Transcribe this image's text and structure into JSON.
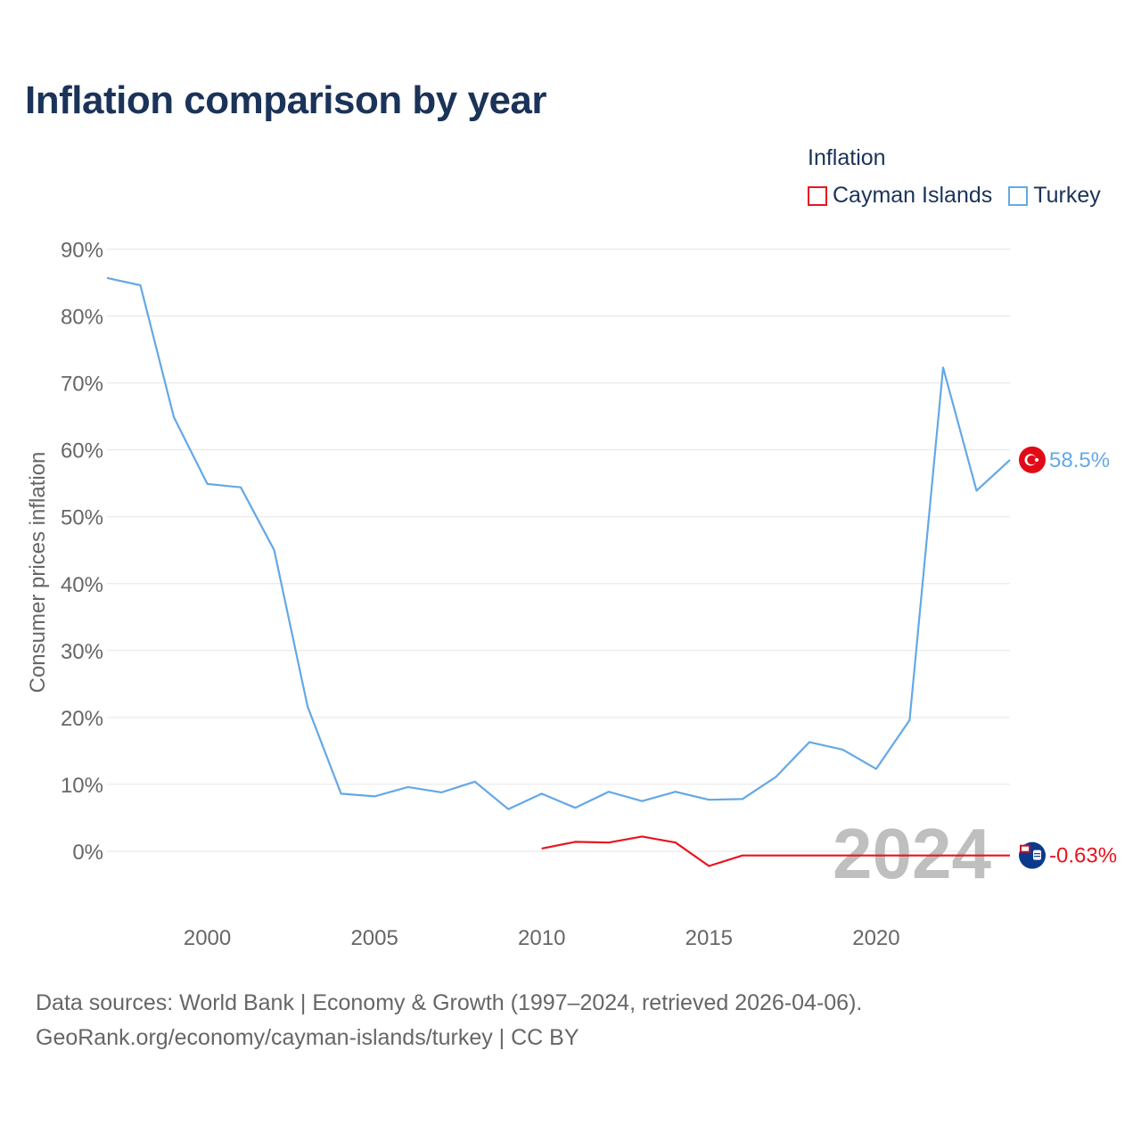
{
  "header": {
    "title": "Inflation comparison by year"
  },
  "legend": {
    "title": "Inflation",
    "items": [
      {
        "label": "Cayman Islands",
        "color": "#e8141f"
      },
      {
        "label": "Turkey",
        "color": "#64a8e6"
      }
    ]
  },
  "footer": {
    "source_line1": "Data sources: World Bank | Economy & Growth (1997–2024, retrieved 2026-04-06).",
    "source_line2": "GeoRank.org/economy/cayman-islands/turkey | CC BY"
  },
  "chart_data": {
    "type": "line",
    "title": "Inflation comparison by year",
    "xlabel": "",
    "ylabel": "Consumer prices inflation",
    "xlim": [
      1997,
      2024
    ],
    "ylim": [
      -10,
      90
    ],
    "x_ticks": [
      2000,
      2005,
      2010,
      2015,
      2020
    ],
    "y_ticks": [
      {
        "value": 0,
        "label": "0%"
      },
      {
        "value": 10,
        "label": "10%"
      },
      {
        "value": 20,
        "label": "20%"
      },
      {
        "value": 30,
        "label": "30%"
      },
      {
        "value": 40,
        "label": "40%"
      },
      {
        "value": 50,
        "label": "50%"
      },
      {
        "value": 60,
        "label": "60%"
      },
      {
        "value": 70,
        "label": "70%"
      },
      {
        "value": 80,
        "label": "80%"
      },
      {
        "value": 90,
        "label": "90%"
      }
    ],
    "year_watermark": "2024",
    "series": [
      {
        "name": "Turkey",
        "color": "#64a8e6",
        "end_label": "58.5%",
        "flag_icon": "turkey-flag-icon",
        "x": [
          1997,
          1998,
          1999,
          2000,
          2001,
          2002,
          2003,
          2004,
          2005,
          2006,
          2007,
          2008,
          2009,
          2010,
          2011,
          2012,
          2013,
          2014,
          2015,
          2016,
          2017,
          2018,
          2019,
          2020,
          2021,
          2022,
          2023,
          2024
        ],
        "y": [
          85.7,
          84.6,
          64.9,
          54.9,
          54.4,
          45.0,
          21.6,
          8.6,
          8.2,
          9.6,
          8.8,
          10.4,
          6.3,
          8.6,
          6.5,
          8.9,
          7.5,
          8.9,
          7.7,
          7.8,
          11.1,
          16.3,
          15.2,
          12.3,
          19.6,
          72.3,
          53.9,
          58.5
        ]
      },
      {
        "name": "Cayman Islands",
        "color": "#e8141f",
        "end_label": "-0.63%",
        "flag_icon": "cayman-islands-flag-icon",
        "x": [
          2010,
          2011,
          2012,
          2013,
          2014,
          2015,
          2016,
          2024
        ],
        "y": [
          0.4,
          1.4,
          1.3,
          2.2,
          1.3,
          -2.2,
          -0.63,
          -0.63
        ]
      }
    ]
  }
}
